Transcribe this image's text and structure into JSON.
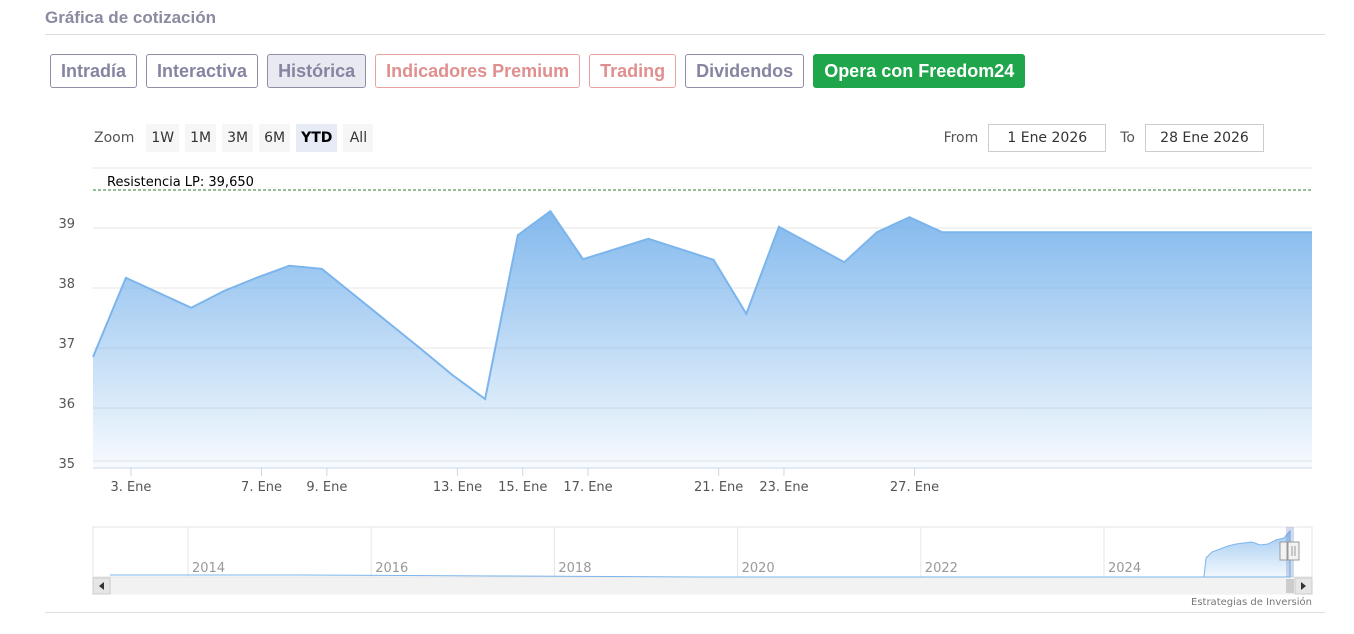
{
  "section_title": "Gráfica de cotización",
  "tabs": [
    {
      "label": "Intradía"
    },
    {
      "label": "Interactiva"
    },
    {
      "label": "Histórica"
    },
    {
      "label": "Indicadores Premium"
    },
    {
      "label": "Trading"
    },
    {
      "label": "Dividendos"
    },
    {
      "label": "Opera con Freedom24"
    }
  ],
  "range_selector": {
    "zoom_label": "Zoom",
    "buttons": [
      "1W",
      "1M",
      "3M",
      "6M",
      "YTD",
      "All"
    ],
    "selected": "YTD",
    "from_label": "From",
    "from_value": "1 Ene 2026",
    "to_label": "To",
    "to_value": "28 Ene 2026"
  },
  "credits": "Estrategias de Inversión",
  "colors": {
    "series_line": "#7cb5ec",
    "resistance_line": "#2e7d32",
    "cta": "#1fa64b"
  },
  "chart_data": {
    "type": "area",
    "title": "",
    "xlabel": "",
    "ylabel": "",
    "x": [
      "2 Ene",
      "3 Ene",
      "5 Ene",
      "6 Ene",
      "7 Ene",
      "8 Ene",
      "9 Ene",
      "12 Ene",
      "13 Ene",
      "14 Ene",
      "15 Ene",
      "16 Ene",
      "17 Ene",
      "19 Ene",
      "21 Ene",
      "22 Ene",
      "23 Ene",
      "25 Ene",
      "26 Ene",
      "27 Ene",
      "28 Ene",
      "29 Ene"
    ],
    "series": [
      {
        "values": [
          36.85,
          38.17,
          37.67,
          37.95,
          38.17,
          38.37,
          38.32,
          37.0,
          36.55,
          36.15,
          38.88,
          39.28,
          38.48,
          38.82,
          38.47,
          37.57,
          39.02,
          38.43,
          38.93,
          39.18,
          38.93,
          38.93
        ]
      }
    ],
    "x_tick_labels": [
      "3. Ene",
      "7. Ene",
      "9. Ene",
      "13. Ene",
      "15. Ene",
      "17. Ene",
      "21. Ene",
      "23. Ene",
      "27. Ene"
    ],
    "y_ticks": [
      35,
      36,
      37,
      38,
      39
    ],
    "ylim": [
      35,
      39.7
    ],
    "grid": true,
    "legend": "none",
    "annotations": [
      {
        "label": "Resistencia LP: 39,650",
        "y": 39.65,
        "style": "dashed"
      }
    ],
    "navigator": {
      "x_tick_labels": [
        "2014",
        "2016",
        "2018",
        "2020",
        "2022",
        "2024"
      ]
    }
  }
}
